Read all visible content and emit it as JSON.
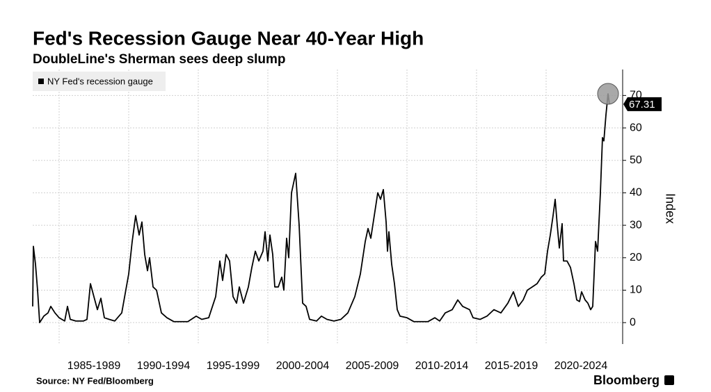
{
  "chart_data": {
    "type": "line",
    "title": "Fed's Recession Gauge Near 40-Year High",
    "subtitle": "DoubleLine's Sherman sees deep slump",
    "y_label": "Index",
    "source": "Source: NY Fed/Bloomberg",
    "brand": "Bloomberg",
    "xlim": [
      1983.1,
      2025.5
    ],
    "ylim": [
      -6.6,
      78
    ],
    "yticks": [
      0,
      10,
      20,
      30,
      40,
      50,
      60,
      70
    ],
    "xticks": [
      {
        "value": 1985,
        "label": "1985-1989"
      },
      {
        "value": 1990,
        "label": "1990-1994"
      },
      {
        "value": 1995,
        "label": "1995-1999"
      },
      {
        "value": 2000,
        "label": "2000-2004"
      },
      {
        "value": 2005,
        "label": "2005-2009"
      },
      {
        "value": 2010,
        "label": "2010-2014"
      },
      {
        "value": 2015,
        "label": "2015-2019"
      },
      {
        "value": 2020,
        "label": "2020-2024"
      }
    ],
    "grid": true,
    "legend": "top-left",
    "series": [
      {
        "name": "NY Fed's recession gauge",
        "color": "#000000",
        "x": [
          1983.1,
          1983.15,
          1983.3,
          1983.45,
          1983.6,
          1983.9,
          1984.2,
          1984.4,
          1984.7,
          1985.0,
          1985.4,
          1985.6,
          1985.8,
          1986.2,
          1986.75,
          1987.0,
          1987.25,
          1987.5,
          1987.75,
          1988.0,
          1988.25,
          1988.6,
          1989.0,
          1989.5,
          1990.0,
          1990.25,
          1990.5,
          1990.75,
          1990.95,
          1991.15,
          1991.35,
          1991.5,
          1991.75,
          1992.0,
          1992.35,
          1992.75,
          1993.25,
          1994.25,
          1994.85,
          1995.25,
          1995.75,
          1996.25,
          1996.55,
          1996.75,
          1997.0,
          1997.25,
          1997.5,
          1997.75,
          1997.95,
          1998.25,
          1998.6,
          1998.85,
          1999.1,
          1999.35,
          1999.65,
          1999.8,
          2000.0,
          2000.15,
          2000.35,
          2000.5,
          2000.75,
          2001.0,
          2001.15,
          2001.35,
          2001.5,
          2001.7,
          2002.0,
          2002.25,
          2002.5,
          2002.75,
          2003.0,
          2003.5,
          2003.85,
          2004.25,
          2004.75,
          2005.25,
          2005.75,
          2006.25,
          2006.65,
          2007.0,
          2007.2,
          2007.4,
          2007.65,
          2007.9,
          2008.1,
          2008.3,
          2008.5,
          2008.6,
          2008.7,
          2008.9,
          2009.1,
          2009.3,
          2009.5,
          2010.0,
          2010.5,
          2011.5,
          2012.0,
          2012.35,
          2012.75,
          2013.25,
          2013.65,
          2014.0,
          2014.5,
          2014.75,
          2015.25,
          2015.75,
          2016.25,
          2016.75,
          2017.25,
          2017.65,
          2018.0,
          2018.35,
          2018.65,
          2019.0,
          2019.35,
          2019.65,
          2019.9,
          2020.1,
          2020.3,
          2020.5,
          2020.65,
          2020.8,
          2020.95,
          2021.15,
          2021.25,
          2021.5,
          2021.75,
          2022.0,
          2022.2,
          2022.4,
          2022.55,
          2022.8,
          2023.0,
          2023.2,
          2023.35,
          2023.55,
          2023.7,
          2023.9,
          2024.05,
          2024.15,
          2024.3,
          2024.45,
          2024.55
        ],
        "values": [
          5,
          23.5,
          18,
          10,
          0,
          2,
          3,
          5,
          3,
          1.5,
          0.5,
          5,
          1,
          0.5,
          0.5,
          1,
          12,
          8,
          4,
          7.5,
          1.5,
          1,
          0.5,
          3,
          15,
          25,
          33,
          27,
          31,
          21,
          16,
          20,
          11,
          10,
          3,
          1.5,
          0.3,
          0.3,
          2,
          1,
          1.5,
          8,
          19,
          13,
          21,
          19,
          8,
          6,
          11,
          6,
          11,
          17,
          22,
          19,
          22,
          28,
          19,
          27,
          21,
          11,
          11,
          14,
          10,
          26,
          20,
          40,
          46,
          30,
          6,
          5,
          1,
          0.5,
          2,
          1,
          0.5,
          1,
          3,
          8,
          15,
          25,
          29,
          26,
          33,
          40,
          38,
          41,
          31,
          22,
          28,
          18,
          12,
          4,
          2,
          1.5,
          0.3,
          0.3,
          1.5,
          0.5,
          3,
          4,
          7,
          5,
          4,
          1.5,
          1,
          2,
          4,
          3,
          6,
          9.5,
          5,
          7,
          10,
          11,
          12,
          14,
          15,
          22,
          27,
          33,
          38,
          30,
          23,
          30.5,
          19,
          19,
          17,
          12,
          7,
          6.5,
          9.5,
          7,
          6,
          4,
          5,
          25,
          22,
          40,
          57,
          56,
          64,
          70.5,
          67.31
        ]
      }
    ]
  }
}
